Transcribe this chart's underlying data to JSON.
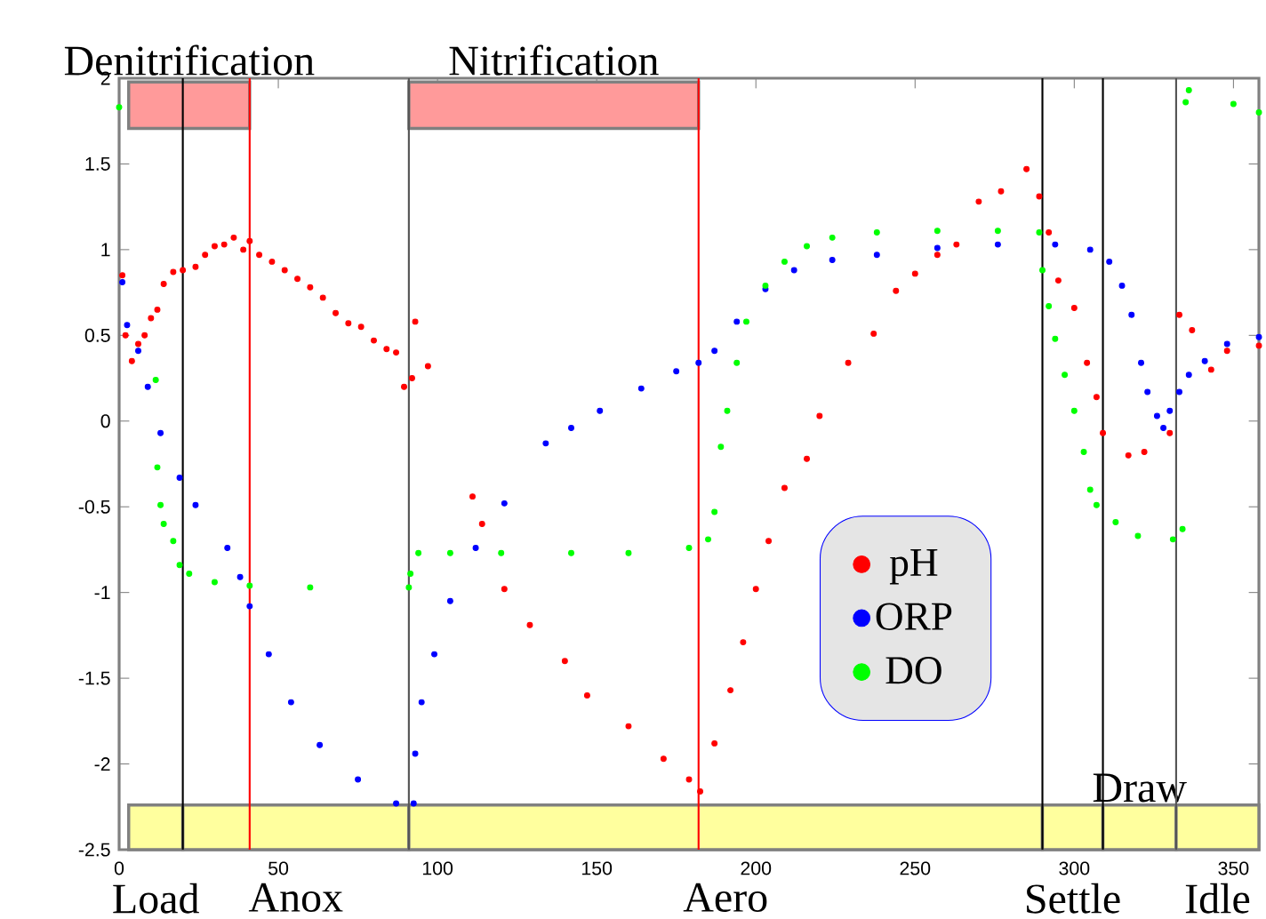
{
  "chart_data": {
    "type": "scatter",
    "xlim": [
      0,
      358
    ],
    "ylim": [
      -2.5,
      2
    ],
    "xticks": [
      0,
      50,
      100,
      150,
      200,
      250,
      300,
      350
    ],
    "yticks": [
      -2.5,
      -2,
      -1.5,
      -1,
      -0.5,
      0,
      0.5,
      1,
      1.5,
      2
    ],
    "marker": "circle",
    "grid": false,
    "legend": "bottom",
    "series": [
      {
        "name": "pH",
        "color": "#ff0000",
        "x": [
          1,
          2,
          4,
          6,
          8,
          10,
          12,
          14,
          17,
          20,
          24,
          27,
          30,
          33,
          36,
          39,
          41,
          44,
          48,
          52,
          56,
          60,
          64,
          68,
          72,
          76,
          80,
          84,
          87,
          89.5,
          92,
          93,
          97,
          111,
          114,
          121,
          129,
          140,
          147,
          160,
          171,
          179,
          182.5,
          187,
          192,
          196,
          200,
          204,
          209,
          216,
          220,
          229,
          237,
          244,
          250,
          257,
          263,
          270,
          277,
          285,
          289,
          292,
          295,
          300,
          304,
          307,
          309,
          317,
          322,
          330,
          333,
          337,
          343,
          348,
          358
        ],
        "values": [
          0.85,
          0.5,
          0.35,
          0.45,
          0.5,
          0.6,
          0.65,
          0.8,
          0.87,
          0.88,
          0.9,
          0.97,
          1.02,
          1.03,
          1.07,
          1.0,
          1.05,
          0.97,
          0.93,
          0.88,
          0.83,
          0.78,
          0.72,
          0.63,
          0.57,
          0.55,
          0.47,
          0.42,
          0.4,
          0.2,
          0.25,
          0.58,
          0.32,
          -0.44,
          -0.6,
          -0.98,
          -1.19,
          -1.4,
          -1.6,
          -1.78,
          -1.97,
          -2.09,
          -2.16,
          -1.88,
          -1.57,
          -1.29,
          -0.98,
          -0.7,
          -0.39,
          -0.22,
          0.03,
          0.34,
          0.51,
          0.76,
          0.86,
          0.97,
          1.03,
          1.28,
          1.34,
          1.47,
          1.31,
          1.1,
          0.82,
          0.66,
          0.34,
          0.14,
          -0.07,
          -0.2,
          -0.18,
          -0.07,
          0.62,
          0.53,
          0.3,
          0.41,
          0.44
        ]
      },
      {
        "name": "ORP",
        "color": "#0000ff",
        "x": [
          1,
          2.5,
          6,
          9,
          13,
          19,
          24,
          34,
          38,
          41,
          47,
          54,
          63,
          75,
          87,
          92.5,
          93,
          95,
          99,
          104,
          112,
          121,
          134,
          142,
          151,
          164,
          175,
          182,
          187,
          194,
          203,
          212,
          224,
          238,
          257,
          276,
          294,
          305,
          311,
          315,
          318,
          321,
          323,
          326,
          328,
          330,
          333,
          336,
          341,
          348,
          358
        ],
        "values": [
          0.81,
          0.56,
          0.41,
          0.2,
          -0.07,
          -0.33,
          -0.49,
          -0.74,
          -0.91,
          -1.08,
          -1.36,
          -1.64,
          -1.89,
          -2.09,
          -2.23,
          -2.23,
          -1.94,
          -1.64,
          -1.36,
          -1.05,
          -0.74,
          -0.48,
          -0.13,
          -0.04,
          0.06,
          0.19,
          0.29,
          0.34,
          0.41,
          0.58,
          0.77,
          0.88,
          0.94,
          0.97,
          1.01,
          1.03,
          1.03,
          1.0,
          0.93,
          0.79,
          0.62,
          0.34,
          0.17,
          0.03,
          -0.04,
          0.06,
          0.17,
          0.27,
          0.35,
          0.45,
          0.49
        ]
      },
      {
        "name": "DO",
        "color": "#00ff00",
        "x": [
          0,
          11.5,
          12,
          13,
          14,
          17,
          19,
          22,
          30,
          41,
          60,
          91,
          91.5,
          94,
          104,
          120,
          142,
          160,
          179,
          185,
          187,
          189,
          191,
          194,
          197,
          203,
          209,
          216,
          224,
          238,
          257,
          276,
          289,
          290,
          292,
          294,
          297,
          300,
          303,
          305,
          307,
          313,
          320,
          331,
          334,
          335,
          336,
          350,
          358
        ],
        "values": [
          1.83,
          0.24,
          -0.27,
          -0.49,
          -0.6,
          -0.7,
          -0.84,
          -0.89,
          -0.94,
          -0.96,
          -0.97,
          -0.97,
          -0.89,
          -0.77,
          -0.77,
          -0.77,
          -0.77,
          -0.77,
          -0.74,
          -0.69,
          -0.53,
          -0.15,
          0.06,
          0.34,
          0.58,
          0.79,
          0.93,
          1.02,
          1.07,
          1.1,
          1.11,
          1.11,
          1.1,
          0.88,
          0.67,
          0.48,
          0.27,
          0.06,
          -0.18,
          -0.4,
          -0.49,
          -0.59,
          -0.67,
          -0.69,
          -0.63,
          1.86,
          1.93,
          1.85,
          1.8
        ]
      }
    ],
    "ref_lines": [
      {
        "axis": "x",
        "value": 20,
        "color": "#000000"
      },
      {
        "axis": "x",
        "value": 41,
        "color": "#ff0000"
      },
      {
        "axis": "x",
        "value": 91,
        "color": "#555555"
      },
      {
        "axis": "x",
        "value": 182,
        "color": "#ff0000"
      },
      {
        "axis": "x",
        "value": 290,
        "color": "#000000"
      },
      {
        "axis": "x",
        "value": 309,
        "color": "#000000"
      },
      {
        "axis": "x",
        "value": 332,
        "color": "#555555"
      }
    ],
    "bands": [
      {
        "axis": "x",
        "from": 3,
        "to": 41,
        "label": "Denitrification",
        "color": "#ff9a9a"
      },
      {
        "axis": "x",
        "from": 91,
        "to": 182,
        "label": "Nitrification",
        "color": "#ff9a9a"
      },
      {
        "axis": "x",
        "from": 3,
        "to": 20,
        "label": "Load",
        "color": "#ffff9e"
      },
      {
        "axis": "x",
        "from": 20,
        "to": 91,
        "label": "Anox",
        "color": "#ffff9e"
      },
      {
        "axis": "x",
        "from": 91,
        "to": 290,
        "label": "Aero",
        "color": "#ffff9e"
      },
      {
        "axis": "x",
        "from": 290,
        "to": 309,
        "label": "Settle",
        "color": "#ffff9e"
      },
      {
        "axis": "x",
        "from": 309,
        "to": 332,
        "label": "Draw",
        "color": "#ffff9e"
      },
      {
        "axis": "x",
        "from": 332,
        "to": 358,
        "label": "Idle",
        "color": "#ffff9e"
      }
    ]
  }
}
